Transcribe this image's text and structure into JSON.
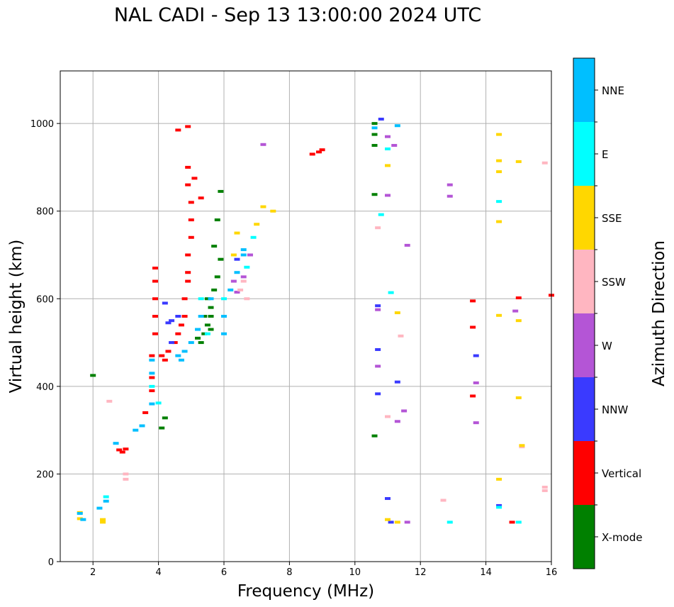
{
  "chart_data": {
    "type": "scatter",
    "title": "NAL CADI - Sep 13 13:00:00 2024 UTC",
    "xlabel": "Frequency (MHz)",
    "ylabel": "Virtual height (km)",
    "xlim": [
      1,
      16
    ],
    "ylim": [
      0,
      1120
    ],
    "xticks": [
      2,
      4,
      6,
      8,
      10,
      12,
      14,
      16
    ],
    "yticks": [
      0,
      200,
      400,
      600,
      800,
      1000
    ],
    "grid": true,
    "colorbar": {
      "label": "Azimuth Direction",
      "categories": [
        {
          "name": "X-mode",
          "color": "#008000"
        },
        {
          "name": "Vertical",
          "color": "#ff0000"
        },
        {
          "name": "NNW",
          "color": "#3a3aff"
        },
        {
          "name": "W",
          "color": "#b455d6"
        },
        {
          "name": "SSW",
          "color": "#ffb6c1"
        },
        {
          "name": "SSE",
          "color": "#ffd700"
        },
        {
          "name": "E",
          "color": "#00ffff"
        },
        {
          "name": "NNE",
          "color": "#00bfff"
        }
      ]
    },
    "series": [
      {
        "name": "X-mode",
        "points": [
          [
            2,
            425
          ],
          [
            4.1,
            305
          ],
          [
            4.2,
            328
          ],
          [
            5.3,
            500
          ],
          [
            5.4,
            520
          ],
          [
            5.5,
            540
          ],
          [
            5.6,
            560
          ],
          [
            5.6,
            580
          ],
          [
            5.5,
            600
          ],
          [
            5.7,
            620
          ],
          [
            5.8,
            650
          ],
          [
            5.9,
            690
          ],
          [
            5.7,
            720
          ],
          [
            5.8,
            780
          ],
          [
            5.9,
            845
          ],
          [
            5.6,
            530
          ],
          [
            5.4,
            560
          ],
          [
            5.2,
            510
          ],
          [
            10.6,
            1000
          ],
          [
            10.6,
            975
          ],
          [
            10.6,
            950
          ],
          [
            10.6,
            838
          ],
          [
            10.6,
            287
          ]
        ]
      },
      {
        "name": "Vertical",
        "points": [
          [
            2.8,
            255
          ],
          [
            2.9,
            250
          ],
          [
            3,
            257
          ],
          [
            3.6,
            340
          ],
          [
            3.8,
            390
          ],
          [
            3.8,
            420
          ],
          [
            3.8,
            470
          ],
          [
            3.9,
            520
          ],
          [
            3.9,
            560
          ],
          [
            3.9,
            600
          ],
          [
            3.9,
            640
          ],
          [
            3.9,
            670
          ],
          [
            4.1,
            470
          ],
          [
            4.2,
            460
          ],
          [
            4.3,
            480
          ],
          [
            4.5,
            500
          ],
          [
            4.6,
            520
          ],
          [
            4.7,
            540
          ],
          [
            4.8,
            560
          ],
          [
            4.8,
            600
          ],
          [
            4.9,
            640
          ],
          [
            4.9,
            660
          ],
          [
            4.9,
            700
          ],
          [
            5,
            740
          ],
          [
            5,
            780
          ],
          [
            5,
            820
          ],
          [
            4.9,
            860
          ],
          [
            4.9,
            900
          ],
          [
            5.1,
            875
          ],
          [
            5.3,
            830
          ],
          [
            4.6,
            985
          ],
          [
            4.9,
            993
          ],
          [
            8.7,
            930
          ],
          [
            8.9,
            935
          ],
          [
            9,
            940
          ],
          [
            13.6,
            595
          ],
          [
            13.6,
            535
          ],
          [
            13.6,
            378
          ],
          [
            14.8,
            90
          ],
          [
            15,
            602
          ],
          [
            16,
            608
          ]
        ]
      },
      {
        "name": "NNW",
        "points": [
          [
            4.4,
            550
          ],
          [
            4.6,
            560
          ],
          [
            4.2,
            590
          ],
          [
            4.4,
            500
          ],
          [
            4.3,
            545
          ],
          [
            6.4,
            690
          ],
          [
            10.7,
            584
          ],
          [
            10.7,
            383
          ],
          [
            10.7,
            484
          ],
          [
            10.8,
            1010
          ],
          [
            11.3,
            410
          ],
          [
            11,
            144
          ],
          [
            11.1,
            90
          ],
          [
            13.7,
            470
          ],
          [
            14.4,
            128
          ]
        ]
      },
      {
        "name": "W",
        "points": [
          [
            6.3,
            640
          ],
          [
            6.4,
            615
          ],
          [
            6.6,
            650
          ],
          [
            6.8,
            700
          ],
          [
            7.2,
            952
          ],
          [
            10.7,
            575
          ],
          [
            10.7,
            446
          ],
          [
            11,
            970
          ],
          [
            11,
            836
          ],
          [
            11.2,
            950
          ],
          [
            11.5,
            344
          ],
          [
            11.6,
            722
          ],
          [
            11.3,
            320
          ],
          [
            11.6,
            90
          ],
          [
            12.9,
            860
          ],
          [
            12.9,
            834
          ],
          [
            13.7,
            408
          ],
          [
            13.7,
            317
          ],
          [
            14.9,
            572
          ]
        ]
      },
      {
        "name": "SSW",
        "points": [
          [
            2.5,
            366
          ],
          [
            3,
            200
          ],
          [
            3,
            188
          ],
          [
            6.5,
            620
          ],
          [
            6.6,
            640
          ],
          [
            6.7,
            600
          ],
          [
            10.7,
            762
          ],
          [
            11,
            331
          ],
          [
            11.4,
            515
          ],
          [
            12.7,
            140
          ],
          [
            15.8,
            910
          ],
          [
            15.8,
            170
          ],
          [
            15.8,
            162
          ],
          [
            15.1,
            262
          ]
        ]
      },
      {
        "name": "SSE",
        "points": [
          [
            1.6,
            112
          ],
          [
            1.6,
            98
          ],
          [
            2.3,
            96
          ],
          [
            2.3,
            90
          ],
          [
            6.3,
            700
          ],
          [
            6.4,
            750
          ],
          [
            7,
            770
          ],
          [
            7.2,
            810
          ],
          [
            7.5,
            800
          ],
          [
            11,
            904
          ],
          [
            11.3,
            568
          ],
          [
            11,
            96
          ],
          [
            11.3,
            90
          ],
          [
            14.4,
            975
          ],
          [
            14.4,
            915
          ],
          [
            14.4,
            890
          ],
          [
            14.4,
            776
          ],
          [
            14.4,
            188
          ],
          [
            14.4,
            562
          ],
          [
            15,
            550
          ],
          [
            15,
            913
          ],
          [
            15,
            374
          ],
          [
            15.1,
            265
          ]
        ]
      },
      {
        "name": "E",
        "points": [
          [
            2.4,
            148
          ],
          [
            3.8,
            400
          ],
          [
            4,
            362
          ],
          [
            5.3,
            600
          ],
          [
            5.5,
            520
          ],
          [
            6,
            600
          ],
          [
            6.7,
            672
          ],
          [
            6.9,
            740
          ],
          [
            10.8,
            792
          ],
          [
            11,
            942
          ],
          [
            11.1,
            614
          ],
          [
            12.9,
            90
          ],
          [
            14.4,
            822
          ],
          [
            14.4,
            124
          ],
          [
            15,
            90
          ]
        ]
      },
      {
        "name": "NNE",
        "points": [
          [
            1.6,
            110
          ],
          [
            1.7,
            96
          ],
          [
            2.2,
            122
          ],
          [
            2.4,
            138
          ],
          [
            2.7,
            270
          ],
          [
            3.3,
            300
          ],
          [
            3.5,
            310
          ],
          [
            3.8,
            360
          ],
          [
            3.8,
            430
          ],
          [
            3.8,
            460
          ],
          [
            4.6,
            470
          ],
          [
            4.7,
            460
          ],
          [
            4.8,
            480
          ],
          [
            5,
            500
          ],
          [
            5.2,
            530
          ],
          [
            5.3,
            560
          ],
          [
            5.6,
            600
          ],
          [
            6,
            520
          ],
          [
            6,
            560
          ],
          [
            6.2,
            620
          ],
          [
            6.4,
            660
          ],
          [
            6.6,
            700
          ],
          [
            6.6,
            712
          ],
          [
            10.6,
            990
          ],
          [
            11.3,
            995
          ]
        ]
      }
    ]
  }
}
